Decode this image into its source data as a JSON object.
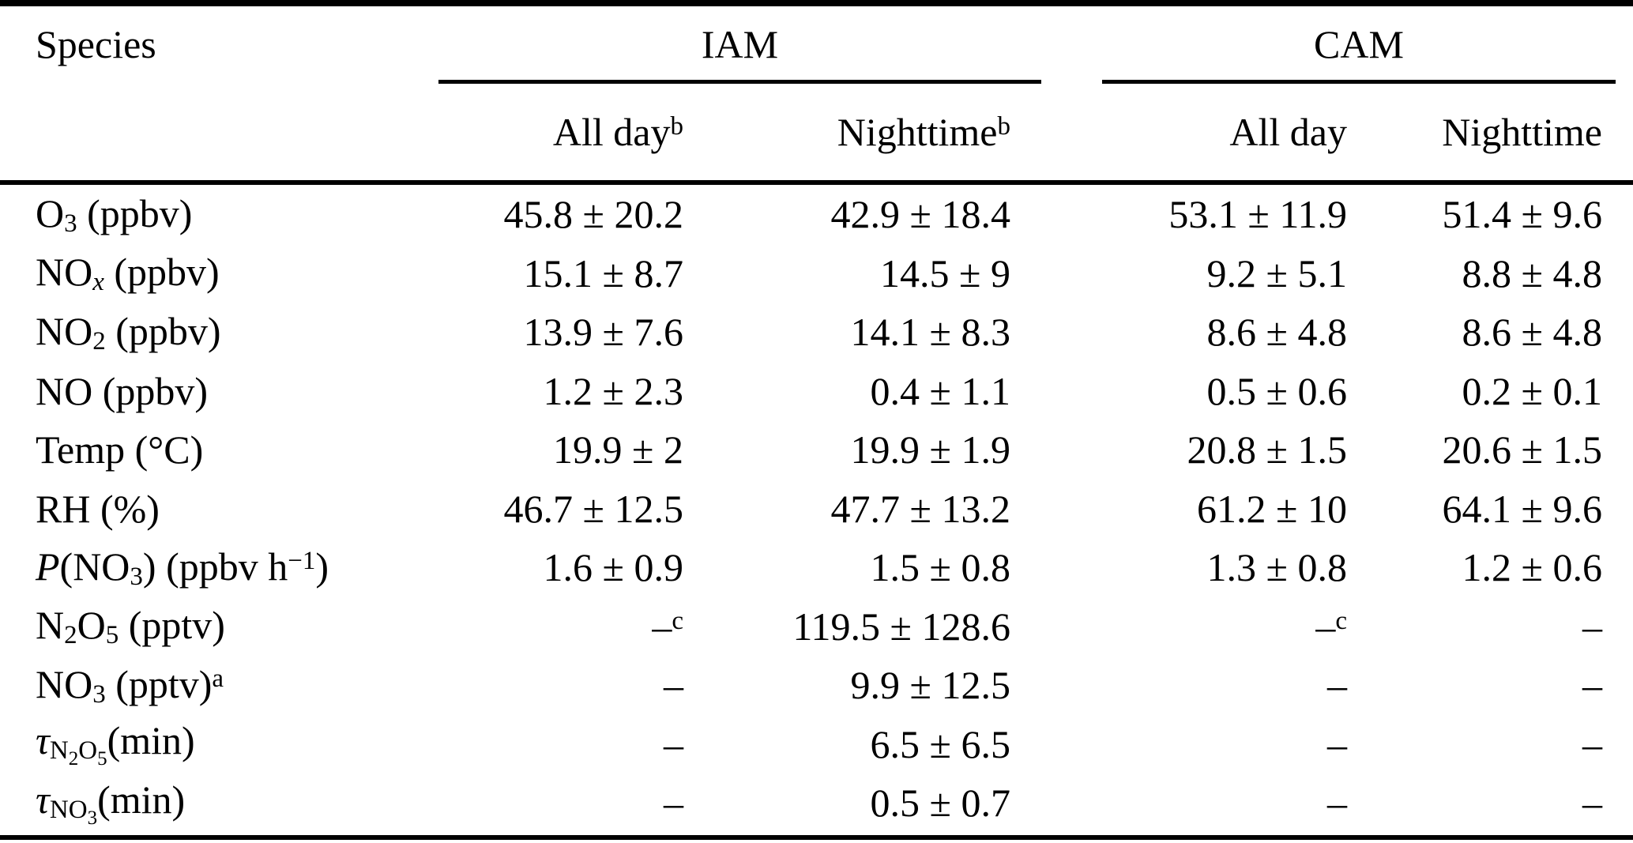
{
  "colors": {
    "text": "#000000",
    "background": "#ffffff",
    "rule": "#000000"
  },
  "table": {
    "col_species_header": "Species",
    "groups": [
      {
        "label": "IAM"
      },
      {
        "label": "CAM"
      }
    ],
    "subheaders": [
      {
        "text": "All day",
        "sup": "b"
      },
      {
        "text": "Nighttime",
        "sup": "b"
      },
      {
        "text": "All day",
        "sup": ""
      },
      {
        "text": "Nighttime",
        "sup": ""
      }
    ],
    "rows": [
      {
        "label": [
          {
            "t": "O"
          },
          {
            "t": "3",
            "style": "sub"
          },
          {
            "t": " (ppbv)"
          }
        ],
        "cells": [
          {
            "text": "45.8 ± 20.2"
          },
          {
            "text": "42.9 ± 18.4"
          },
          {
            "text": "53.1 ± 11.9"
          },
          {
            "text": "51.4 ± 9.6"
          }
        ]
      },
      {
        "label": [
          {
            "t": "NO"
          },
          {
            "t": "x",
            "style": "sub italic"
          },
          {
            "t": " (ppbv)"
          }
        ],
        "cells": [
          {
            "text": "15.1 ± 8.7"
          },
          {
            "text": "14.5 ± 9"
          },
          {
            "text": "9.2 ± 5.1"
          },
          {
            "text": "8.8 ± 4.8"
          }
        ]
      },
      {
        "label": [
          {
            "t": "NO"
          },
          {
            "t": "2",
            "style": "sub"
          },
          {
            "t": " (ppbv)"
          }
        ],
        "cells": [
          {
            "text": "13.9 ± 7.6"
          },
          {
            "text": "14.1 ± 8.3"
          },
          {
            "text": "8.6 ± 4.8"
          },
          {
            "text": "8.6 ± 4.8"
          }
        ]
      },
      {
        "label": [
          {
            "t": "NO (ppbv)"
          }
        ],
        "cells": [
          {
            "text": "1.2 ± 2.3"
          },
          {
            "text": "0.4 ± 1.1"
          },
          {
            "text": "0.5 ± 0.6"
          },
          {
            "text": "0.2 ± 0.1"
          }
        ]
      },
      {
        "label": [
          {
            "t": "Temp (°C)"
          }
        ],
        "cells": [
          {
            "text": "19.9 ± 2"
          },
          {
            "text": "19.9 ± 1.9"
          },
          {
            "text": "20.8 ± 1.5"
          },
          {
            "text": "20.6 ± 1.5"
          }
        ]
      },
      {
        "label": [
          {
            "t": "RH (%)"
          }
        ],
        "cells": [
          {
            "text": "46.7 ± 12.5"
          },
          {
            "text": "47.7 ± 13.2"
          },
          {
            "text": "61.2 ± 10"
          },
          {
            "text": "64.1 ± 9.6"
          }
        ]
      },
      {
        "label": [
          {
            "t": "P",
            "style": "italic"
          },
          {
            "t": "(NO"
          },
          {
            "t": "3",
            "style": "sub"
          },
          {
            "t": ") (ppbv h"
          },
          {
            "t": "−1",
            "style": "sup"
          },
          {
            "t": ")"
          }
        ],
        "cells": [
          {
            "text": "1.6 ± 0.9"
          },
          {
            "text": "1.5 ± 0.8"
          },
          {
            "text": "1.3 ± 0.8"
          },
          {
            "text": "1.2 ± 0.6"
          }
        ]
      },
      {
        "label": [
          {
            "t": "N"
          },
          {
            "t": "2",
            "style": "sub"
          },
          {
            "t": "O"
          },
          {
            "t": "5",
            "style": "sub"
          },
          {
            "t": " (pptv)"
          }
        ],
        "cells": [
          {
            "text": "–",
            "sup": "c"
          },
          {
            "text": "119.5 ± 128.6"
          },
          {
            "text": "–",
            "sup": "c"
          },
          {
            "text": "–"
          }
        ]
      },
      {
        "label": [
          {
            "t": "NO"
          },
          {
            "t": "3",
            "style": "sub"
          },
          {
            "t": " (pptv)"
          },
          {
            "t": "a",
            "style": "sup"
          }
        ],
        "cells": [
          {
            "text": "–"
          },
          {
            "text": "9.9 ± 12.5"
          },
          {
            "text": "–"
          },
          {
            "text": "–"
          }
        ]
      },
      {
        "label": [
          {
            "t": "τ",
            "style": "italic"
          },
          {
            "t": "N",
            "style": "sub"
          },
          {
            "t": "2",
            "style": "subsub"
          },
          {
            "t": "O",
            "style": "sub"
          },
          {
            "t": "5",
            "style": "subsub"
          },
          {
            "t": "(min)"
          }
        ],
        "cells": [
          {
            "text": "–"
          },
          {
            "text": "6.5 ± 6.5"
          },
          {
            "text": "–"
          },
          {
            "text": "–"
          }
        ]
      },
      {
        "label": [
          {
            "t": "τ",
            "style": "italic"
          },
          {
            "t": "NO",
            "style": "sub"
          },
          {
            "t": "3",
            "style": "subsub"
          },
          {
            "t": "(min)"
          }
        ],
        "cells": [
          {
            "text": "–"
          },
          {
            "text": "0.5 ± 0.7"
          },
          {
            "text": "–"
          },
          {
            "text": "–"
          }
        ]
      }
    ]
  }
}
